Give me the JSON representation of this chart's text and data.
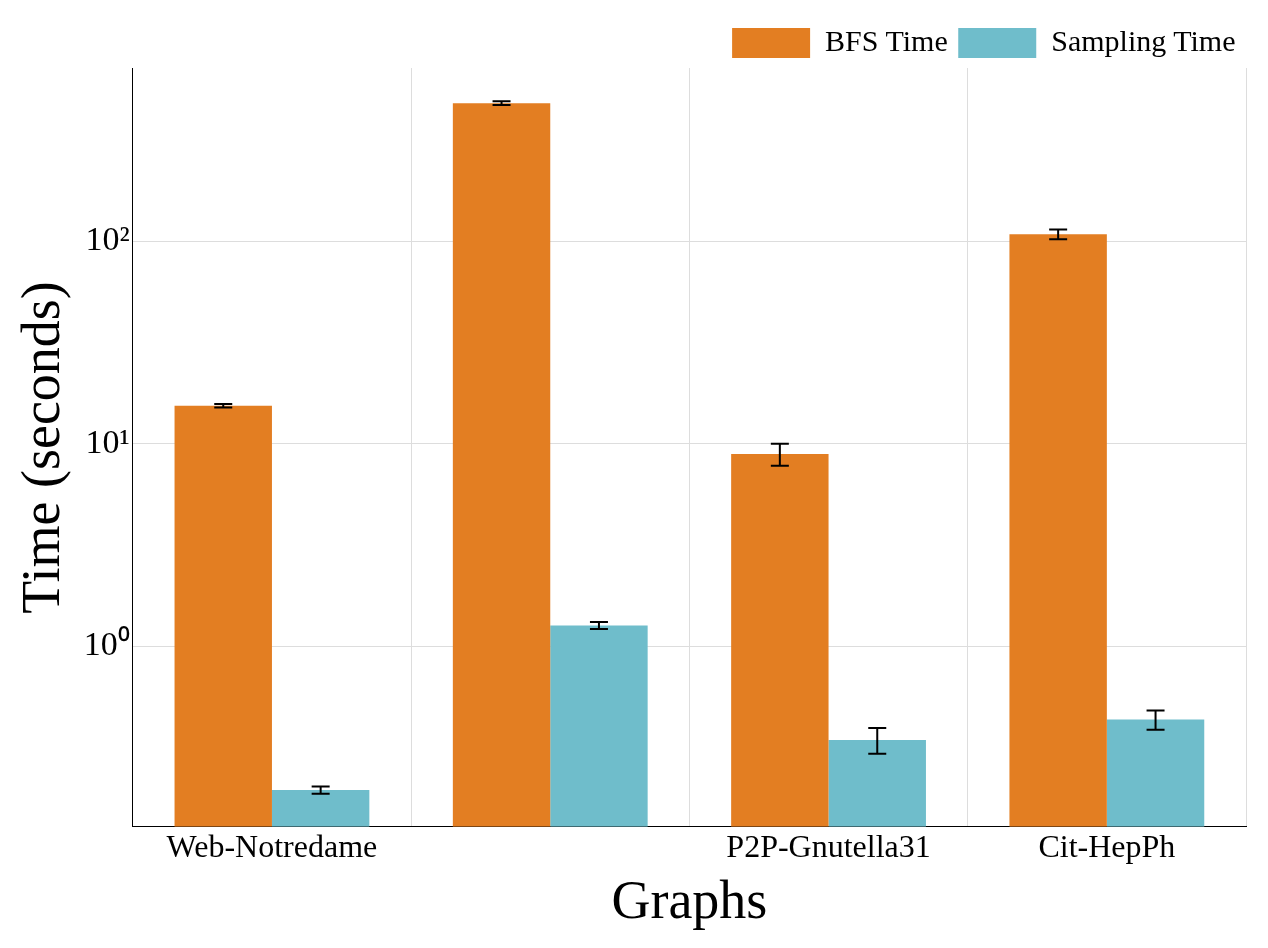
{
  "chart_data": {
    "type": "bar",
    "xlabel": "Graphs",
    "ylabel": "Time (seconds)",
    "categories": [
      "Web-Notredame",
      null,
      "P2P-Gnutella31",
      "Cit-HepPh"
    ],
    "series": [
      {
        "name": "BFS Time",
        "color": "#e37e22",
        "values": [
          15.4,
          479,
          8.9,
          108
        ],
        "errors": [
          0.3,
          10,
          1.1,
          6
        ]
      },
      {
        "name": "Sampling Time",
        "color": "#6fbdcb",
        "values": [
          0.196,
          1.27,
          0.346,
          0.436
        ],
        "errors": [
          0.008,
          0.05,
          0.05,
          0.048
        ]
      }
    ],
    "log": "y",
    "ylim": [
      0.129,
      714
    ],
    "yticks": [
      {
        "value": 1,
        "label": "10⁰"
      },
      {
        "value": 10,
        "label": "10¹"
      },
      {
        "value": 100,
        "label": "10²"
      }
    ],
    "grid": true,
    "legend": "top right"
  }
}
